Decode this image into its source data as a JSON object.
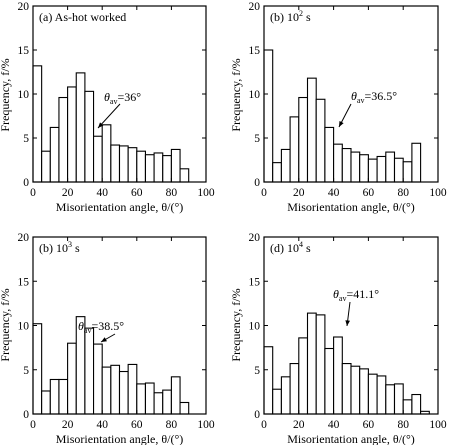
{
  "chart_data": [
    {
      "type": "bar",
      "panel_label": "(a) As-hot worked",
      "title_parts": [
        "(a) As-hot worked",
        "",
        ""
      ],
      "xlabel": "Misorientation angle, θ/(°)",
      "ylabel": "Frequency, f/%",
      "xlim": [
        0,
        100
      ],
      "ylim": [
        0,
        20
      ],
      "xticks": [
        "0",
        "20",
        "40",
        "60",
        "80",
        "100"
      ],
      "yticks": [
        "0",
        "5",
        "10",
        "15",
        "20"
      ],
      "bin_width": 5,
      "x": [
        0,
        5,
        10,
        15,
        20,
        25,
        30,
        35,
        40,
        45,
        50,
        55,
        60,
        65,
        70,
        75,
        80,
        85
      ],
      "values": [
        13.2,
        3.5,
        6.2,
        9.6,
        10.8,
        12.4,
        10.3,
        5.2,
        6.5,
        4.2,
        4.1,
        3.9,
        3.5,
        3.1,
        3.3,
        3.0,
        3.7,
        1.5
      ],
      "annotation": {
        "symbol": "θ",
        "sub": "av",
        "value": "=36°"
      }
    },
    {
      "type": "bar",
      "panel_label": "(b) 10² s",
      "title_parts": [
        "(b) 10",
        "2",
        " s"
      ],
      "xlabel": "Misorientation angle, θ/(°)",
      "ylabel": "Frequency, f/%",
      "xlim": [
        0,
        100
      ],
      "ylim": [
        0,
        20
      ],
      "xticks": [
        "0",
        "20",
        "40",
        "60",
        "80",
        "100"
      ],
      "yticks": [
        "0",
        "5",
        "10",
        "15",
        "20"
      ],
      "bin_width": 5,
      "x": [
        0,
        5,
        10,
        15,
        20,
        25,
        30,
        35,
        40,
        45,
        50,
        55,
        60,
        65,
        70,
        75,
        80,
        85
      ],
      "values": [
        15.0,
        2.2,
        3.7,
        7.4,
        9.6,
        11.8,
        9.4,
        6.2,
        4.3,
        3.8,
        3.4,
        3.1,
        2.6,
        2.9,
        3.4,
        2.7,
        2.3,
        4.4
      ],
      "annotation": {
        "symbol": "θ",
        "sub": "av",
        "value": "=36.5°"
      }
    },
    {
      "type": "bar",
      "panel_label": "(b) 10³ s",
      "title_parts": [
        "(b) 10",
        "3",
        " s"
      ],
      "xlabel": "Misorientation angle, θ/(°)",
      "ylabel": "Frequency, f/%",
      "xlim": [
        0,
        100
      ],
      "ylim": [
        0,
        20
      ],
      "xticks": [
        "0",
        "20",
        "40",
        "60",
        "80",
        "100"
      ],
      "yticks": [
        "0",
        "5",
        "10",
        "15",
        "20"
      ],
      "bin_width": 5,
      "x": [
        0,
        5,
        10,
        15,
        20,
        25,
        30,
        35,
        40,
        45,
        50,
        55,
        60,
        65,
        70,
        75,
        80,
        85
      ],
      "values": [
        10.2,
        2.6,
        3.9,
        3.9,
        8.0,
        11.0,
        9.7,
        7.9,
        5.3,
        5.5,
        4.8,
        5.6,
        3.4,
        3.5,
        2.4,
        2.7,
        4.2,
        1.3
      ],
      "annotation": {
        "symbol": "θ",
        "sub": "av",
        "value": "=38.5°"
      }
    },
    {
      "type": "bar",
      "panel_label": "(d) 10⁴ s",
      "title_parts": [
        "(d) 10",
        "4",
        " s"
      ],
      "xlabel": "Misorientation angle, θ/(°)",
      "ylabel": "Frequency, f/%",
      "xlim": [
        0,
        100
      ],
      "ylim": [
        0,
        20
      ],
      "xticks": [
        "0",
        "20",
        "40",
        "60",
        "80",
        "100"
      ],
      "yticks": [
        "0",
        "5",
        "10",
        "15",
        "20"
      ],
      "bin_width": 5,
      "x": [
        0,
        5,
        10,
        15,
        20,
        25,
        30,
        35,
        40,
        45,
        50,
        55,
        60,
        65,
        70,
        75,
        80,
        85,
        90
      ],
      "values": [
        7.6,
        2.8,
        4.2,
        5.7,
        8.6,
        11.4,
        11.2,
        7.4,
        8.7,
        5.7,
        5.4,
        5.1,
        4.5,
        4.3,
        3.3,
        3.4,
        1.6,
        2.2,
        0.3
      ],
      "annotation": {
        "symbol": "θ",
        "sub": "av",
        "value": "=41.1°"
      }
    }
  ]
}
